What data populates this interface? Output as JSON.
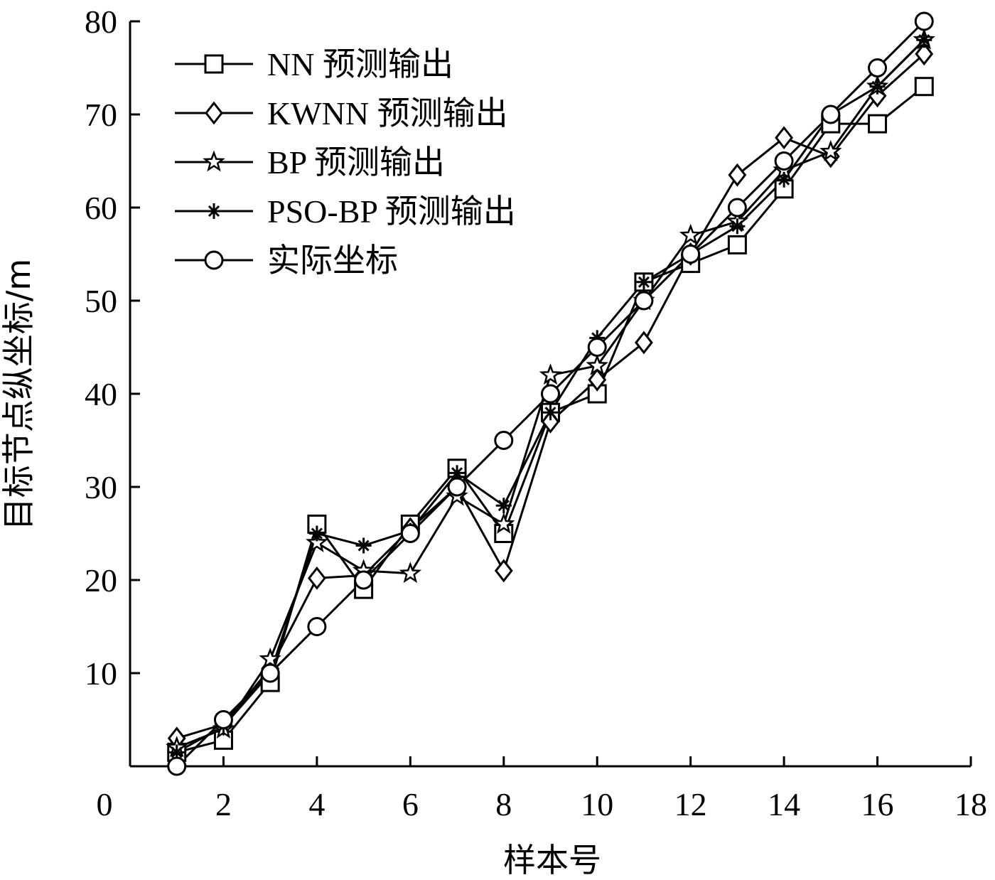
{
  "chart_data": {
    "type": "line",
    "xlabel": "样本号",
    "ylabel": "目标节点纵坐标/m",
    "xlim": [
      0,
      18
    ],
    "ylim": [
      0,
      80
    ],
    "x_ticks": [
      0,
      2,
      4,
      6,
      8,
      10,
      12,
      14,
      16,
      18
    ],
    "y_ticks": [
      10,
      20,
      30,
      40,
      50,
      60,
      70,
      80
    ],
    "grid": false,
    "legend_position": "top-left",
    "x": [
      1,
      2,
      3,
      4,
      5,
      6,
      7,
      8,
      9,
      10,
      11,
      12,
      13,
      14,
      15,
      16,
      17
    ],
    "series": [
      {
        "name": "NN 预测输出",
        "marker": "square",
        "values": [
          1.5,
          2.8,
          9.0,
          26.0,
          19.0,
          26.0,
          32.0,
          25.0,
          38.0,
          40.0,
          52.0,
          54.0,
          56.0,
          62.0,
          69.0,
          69.0,
          73.0
        ]
      },
      {
        "name": "KWNN 预测输出",
        "marker": "diamond",
        "values": [
          3.0,
          4.5,
          10.5,
          20.2,
          20.5,
          25.5,
          30.0,
          21.0,
          37.0,
          41.5,
          45.5,
          55.0,
          63.5,
          67.5,
          65.5,
          72.0,
          76.5
        ]
      },
      {
        "name": "BP 预测输出",
        "marker": "star",
        "values": [
          2.0,
          4.0,
          11.5,
          24.0,
          21.0,
          20.7,
          29.0,
          26.0,
          42.0,
          43.0,
          50.0,
          57.0,
          58.5,
          64.0,
          66.0,
          73.0,
          78.0
        ]
      },
      {
        "name": "PSO-BP 预测输出",
        "marker": "plus",
        "values": [
          1.5,
          4.3,
          10.0,
          25.0,
          23.7,
          25.3,
          31.5,
          28.0,
          38.0,
          46.0,
          52.0,
          55.0,
          58.0,
          63.0,
          70.0,
          73.0,
          78.0
        ]
      },
      {
        "name": "实际坐标",
        "marker": "circle",
        "values": [
          0.0,
          5.0,
          10.0,
          15.0,
          20.0,
          25.0,
          30.0,
          35.0,
          40.0,
          45.0,
          50.0,
          55.0,
          60.0,
          65.0,
          70.0,
          75.0,
          80.0
        ]
      }
    ]
  }
}
